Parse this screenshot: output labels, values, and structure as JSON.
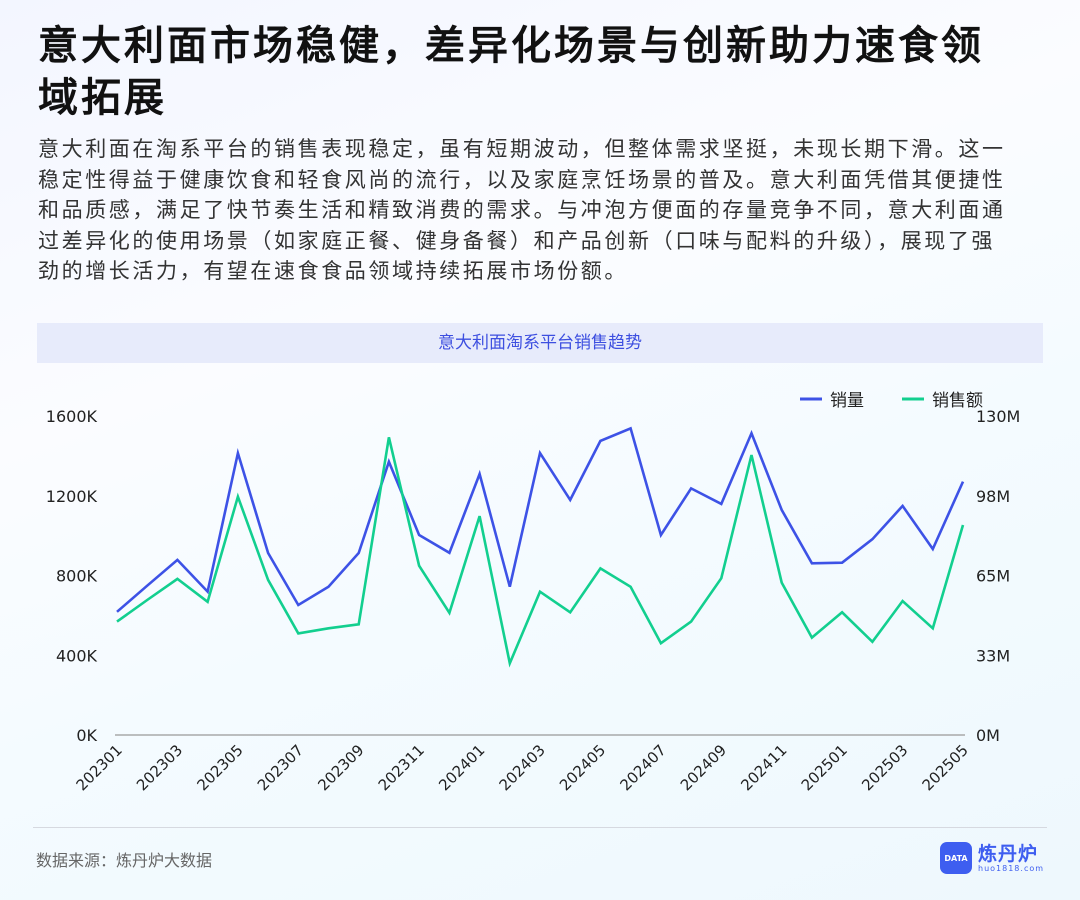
{
  "title_lines": [
    "意大利面市场稳健，差异化场景与创新助力速食领",
    "域拓展"
  ],
  "paragraph_lines": [
    "意大利面在淘系平台的销售表现稳定，虽有短期波动，但整体需求坚挺，未现长期下滑。这一",
    "稳定性得益于健康饮食和轻食风尚的流行，以及家庭烹饪场景的普及。意大利面凭借其便捷性",
    "和品质感，满足了快节奏生活和精致消费的需求。与冲泡方便面的存量竞争不同，意大利面通",
    "过差异化的使用场景（如家庭正餐、健身备餐）和产品创新（口味与配料的升级），展现了强",
    "劲的增长活力，有望在速食食品领域持续拓展市场份额。"
  ],
  "footer": {
    "source": "数据来源：炼丹炉大数据"
  },
  "logo": {
    "name": "炼丹炉",
    "url": "huo1818.com",
    "badge": "DATA"
  },
  "chart_data": {
    "type": "line",
    "title": "意大利面淘系平台销售趋势",
    "categories": [
      "202301",
      "202302",
      "202303",
      "202304",
      "202305",
      "202306",
      "202307",
      "202308",
      "202309",
      "202310",
      "202311",
      "202312",
      "202401",
      "202402",
      "202403",
      "202404",
      "202405",
      "202406",
      "202407",
      "202408",
      "202409",
      "202410",
      "202411",
      "202412",
      "202501",
      "202502",
      "202503",
      "202504",
      "202505"
    ],
    "x_tick_labels": [
      "202301",
      "202303",
      "202305",
      "202307",
      "202309",
      "202311",
      "202401",
      "202403",
      "202405",
      "202407",
      "202409",
      "202411",
      "202501",
      "202503",
      "202505"
    ],
    "y_left": {
      "ticks": [
        "0K",
        "400K",
        "800K",
        "1200K",
        "1600K"
      ],
      "range": [
        0,
        1600000
      ]
    },
    "y_right": {
      "ticks": [
        "0M",
        "33M",
        "65M",
        "98M",
        "130M"
      ],
      "range": [
        0,
        130000000
      ]
    },
    "legend_position": "top-right",
    "grid": false,
    "series": [
      {
        "name": "销量",
        "axis": "left",
        "color": "#3d52e6",
        "values": [
          618000,
          749000,
          878000,
          719000,
          1414000,
          913000,
          652000,
          744000,
          913000,
          1371000,
          1003000,
          914000,
          1309000,
          744000,
          1414000,
          1179000,
          1475000,
          1538000,
          1003000,
          1237000,
          1159000,
          1513000,
          1129000,
          861000,
          864000,
          982000,
          1149000,
          933000,
          1271000
        ]
      },
      {
        "name": "销售额",
        "axis": "right",
        "color": "#12cf8f",
        "values": [
          46200000,
          55000000,
          63600000,
          54300000,
          97100000,
          63200000,
          41400000,
          43500000,
          45100000,
          121300000,
          69000000,
          49800000,
          89200000,
          29200000,
          58400000,
          50000000,
          67900000,
          60400000,
          37400000,
          46200000,
          63900000,
          114100000,
          62100000,
          39700000,
          50000000,
          38000000,
          54600000,
          43500000,
          85600000
        ]
      }
    ]
  }
}
